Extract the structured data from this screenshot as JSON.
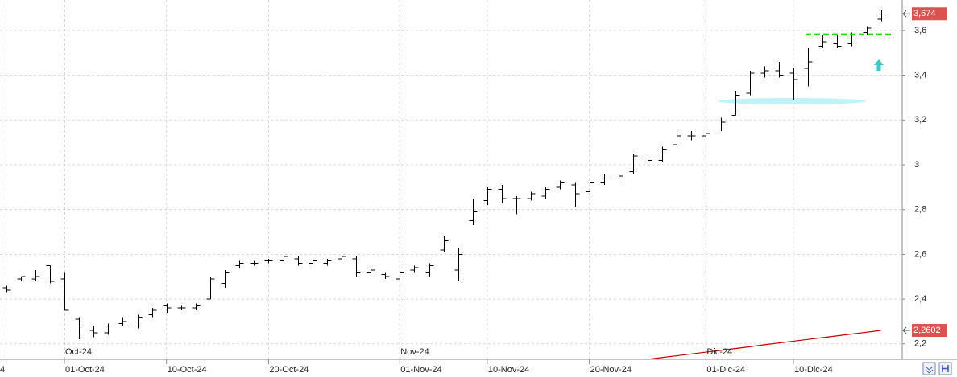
{
  "chart_data": {
    "type": "ohlc",
    "categories": [
      "4",
      null,
      null,
      null,
      "01-Oct-24",
      null,
      null,
      null,
      null,
      null,
      null,
      "10-Oct-24",
      null,
      null,
      null,
      null,
      null,
      null,
      "20-Oct-24",
      null,
      null,
      null,
      null,
      null,
      null,
      null,
      null,
      "01-Nov-24",
      null,
      null,
      null,
      null,
      null,
      "10-Nov-24",
      null,
      null,
      null,
      null,
      null,
      null,
      "20-Nov-24",
      null,
      null,
      null,
      null,
      null,
      null,
      null,
      "01-Dic-24",
      null,
      null,
      null,
      null,
      null,
      "10-Dic-24",
      null,
      null,
      null,
      null,
      null,
      null
    ],
    "periods": [
      "Oct-24",
      "Nov-24",
      "Dic-24"
    ],
    "open": [
      2.45,
      2.49,
      2.49,
      2.55,
      2.49,
      2.31,
      2.26,
      2.25,
      2.29,
      2.28,
      2.33,
      2.37,
      2.36,
      2.36,
      2.4,
      2.47,
      2.55,
      2.56,
      2.57,
      2.57,
      2.58,
      2.56,
      2.56,
      2.58,
      2.58,
      2.52,
      2.51,
      2.49,
      2.53,
      2.52,
      2.62,
      2.53,
      2.75,
      2.84,
      2.89,
      2.85,
      2.85,
      2.86,
      2.9,
      2.91,
      2.88,
      2.92,
      2.94,
      2.97,
      3.03,
      3.02,
      3.09,
      3.13,
      3.13,
      3.16,
      3.22,
      3.32,
      3.41,
      3.42,
      3.41,
      3.43,
      3.53,
      3.54,
      3.54,
      3.59,
      3.65
    ],
    "high": [
      2.46,
      2.5,
      2.53,
      2.55,
      2.52,
      2.32,
      2.28,
      2.29,
      2.32,
      2.33,
      2.36,
      2.38,
      2.37,
      2.38,
      2.5,
      2.53,
      2.57,
      2.57,
      2.58,
      2.6,
      2.59,
      2.58,
      2.58,
      2.6,
      2.59,
      2.54,
      2.52,
      2.54,
      2.55,
      2.56,
      2.68,
      2.63,
      2.85,
      2.9,
      2.91,
      2.86,
      2.88,
      2.9,
      2.93,
      2.92,
      2.93,
      2.96,
      2.96,
      3.05,
      3.04,
      3.08,
      3.15,
      3.15,
      3.16,
      3.21,
      3.33,
      3.42,
      3.44,
      3.46,
      3.43,
      3.52,
      3.58,
      3.58,
      3.59,
      3.62,
      3.69
    ],
    "low": [
      2.43,
      2.48,
      2.48,
      2.47,
      2.35,
      2.22,
      2.23,
      2.24,
      2.28,
      2.27,
      2.32,
      2.34,
      2.35,
      2.35,
      2.4,
      2.45,
      2.54,
      2.55,
      2.56,
      2.56,
      2.55,
      2.55,
      2.55,
      2.56,
      2.5,
      2.51,
      2.49,
      2.47,
      2.52,
      2.5,
      2.61,
      2.48,
      2.73,
      2.82,
      2.83,
      2.78,
      2.84,
      2.85,
      2.89,
      2.81,
      2.87,
      2.91,
      2.92,
      2.96,
      3.01,
      3.01,
      3.08,
      3.11,
      3.12,
      3.15,
      3.22,
      3.31,
      3.39,
      3.39,
      3.29,
      3.35,
      3.52,
      3.52,
      3.53,
      3.58,
      3.64
    ],
    "close": [
      2.44,
      2.5,
      2.5,
      2.48,
      2.35,
      2.28,
      2.25,
      2.28,
      2.3,
      2.32,
      2.35,
      2.36,
      2.36,
      2.37,
      2.49,
      2.52,
      2.56,
      2.56,
      2.57,
      2.59,
      2.56,
      2.57,
      2.57,
      2.59,
      2.52,
      2.53,
      2.5,
      2.52,
      2.54,
      2.55,
      2.66,
      2.6,
      2.79,
      2.89,
      2.85,
      2.85,
      2.87,
      2.89,
      2.92,
      2.87,
      2.92,
      2.94,
      2.95,
      3.04,
      3.02,
      3.07,
      3.13,
      3.13,
      3.14,
      3.19,
      3.31,
      3.41,
      3.42,
      3.4,
      3.38,
      3.46,
      3.55,
      3.53,
      3.58,
      3.61,
      3.674
    ],
    "bar_color": "#000000",
    "ma": {
      "color": "#c00000",
      "values": [
        null,
        null,
        null,
        null,
        null,
        null,
        null,
        null,
        null,
        null,
        null,
        null,
        null,
        null,
        null,
        null,
        null,
        null,
        null,
        null,
        null,
        null,
        null,
        null,
        null,
        null,
        null,
        null,
        null,
        null,
        null,
        null,
        null,
        null,
        null,
        null,
        null,
        null,
        null,
        null,
        null,
        null,
        null,
        null,
        2.131,
        2.139,
        2.147,
        2.155,
        2.163,
        2.171,
        2.179,
        2.187,
        2.196,
        2.204,
        2.212,
        2.22,
        2.228,
        2.236,
        2.244,
        2.252,
        2.2602
      ]
    },
    "ylim": [
      2.131,
      3.736
    ],
    "yticks": [
      {
        "value": 3.6,
        "label": "3,6"
      },
      {
        "value": 3.4,
        "label": "3,4"
      },
      {
        "value": 3.2,
        "label": "3,2"
      },
      3,
      {
        "value": 2.8,
        "label": "2,8"
      },
      {
        "value": 2.6,
        "label": "2,6"
      },
      {
        "value": 2.4,
        "label": "2,4"
      },
      {
        "value": 2.2,
        "label": "2,2"
      }
    ],
    "grid": true,
    "price_labels": [
      {
        "value": 3.674,
        "label": "3,674",
        "color": "#d9534f"
      },
      {
        "value": 2.2602,
        "label": "2,2602",
        "color": "#d9534f"
      }
    ],
    "level_line": {
      "value": 3.582,
      "color": "#22dd00"
    }
  }
}
